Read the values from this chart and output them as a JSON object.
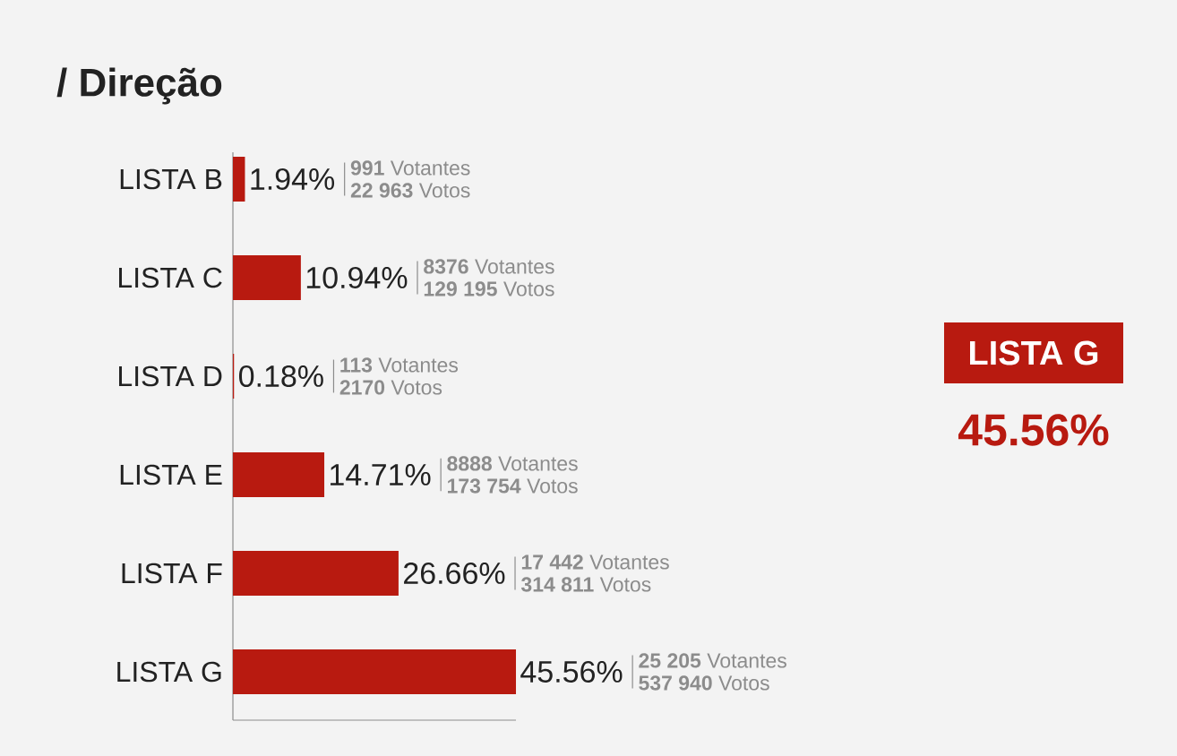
{
  "chart_data": {
    "type": "bar",
    "orientation": "horizontal",
    "title": "/ Direção",
    "categories": [
      "LISTA B",
      "LISTA C",
      "LISTA D",
      "LISTA E",
      "LISTA F",
      "LISTA G"
    ],
    "values": [
      1.94,
      10.94,
      0.18,
      14.71,
      26.66,
      45.56
    ],
    "value_labels": [
      "1.94%",
      "10.94%",
      "0.18%",
      "14.71%",
      "26.66%",
      "45.56%"
    ],
    "color": "#b81a10",
    "annotations": [
      "**991** Votantes",
      "**22 963** Votos",
      "**8376** Votantes",
      "**129 195** Votos",
      "**113** Votantes",
      "**2170** Votos",
      "**8888** Votantes",
      "**173 754** Votos",
      "**17 442** Votantes",
      "**314 811** Votos",
      "**25 205** Votantes",
      "**537 940** Votos",
      "LISTA G",
      "45.56%"
    ]
  }
}
